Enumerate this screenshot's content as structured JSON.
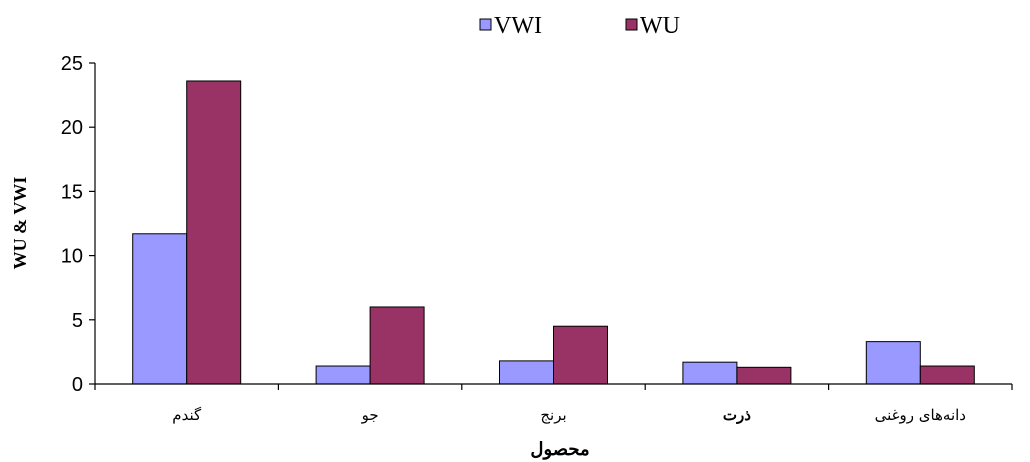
{
  "chart_data": {
    "type": "bar",
    "title": "",
    "xlabel": "محصول",
    "ylabel": "WU & VWI",
    "categories": [
      "گندم",
      "جو",
      "برنج",
      "ذرت",
      "دانه‌های روغنی"
    ],
    "bold_categories": [
      "ذرت"
    ],
    "series": [
      {
        "name": "VWI",
        "values": [
          11.7,
          1.4,
          1.8,
          1.7,
          3.3
        ],
        "color": "#9999FF"
      },
      {
        "name": "WU",
        "values": [
          23.6,
          6.0,
          4.5,
          1.3,
          1.4
        ],
        "color": "#993366"
      }
    ],
    "ylim": [
      0,
      25
    ],
    "yticks": [
      0,
      5,
      10,
      15,
      20,
      25
    ],
    "grid": false,
    "legend": "top-center"
  }
}
